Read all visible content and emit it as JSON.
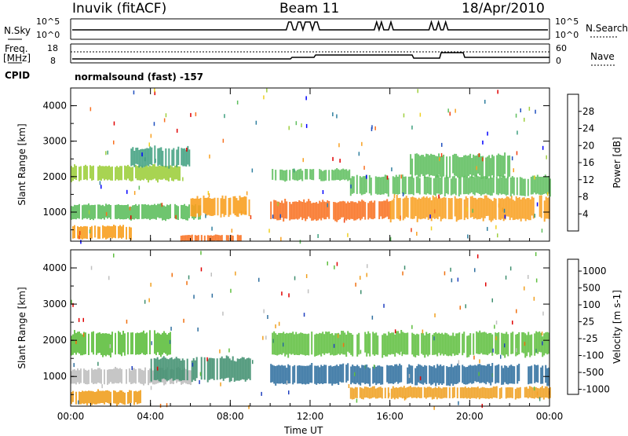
{
  "header": {
    "title": "Inuvik (fitACF)",
    "beam": "Beam 11",
    "date": "18/Apr/2010"
  },
  "strip_labels": {
    "nsky": "N.Sky",
    "nsky_ticks": [
      "10^5",
      "10^0"
    ],
    "nsearch": "N.Search",
    "nsearch_ticks": [
      "10^5",
      "10^0"
    ],
    "freq": "Freq.",
    "freq_unit": "[MHz]",
    "freq_ticks": [
      "18",
      "8"
    ],
    "nave": "Nave",
    "nave_ticks": [
      "60",
      "0"
    ],
    "cpid": "CPID",
    "cpid_value": "normalsound (fast) -157"
  },
  "chart_data": [
    {
      "type": "heatmap",
      "title": "",
      "xlabel": "Time UT",
      "ylabel": "Slant Range [km]",
      "x_ticks": [
        "00:00",
        "04:00",
        "08:00",
        "12:00",
        "16:00",
        "20:00",
        "00:00"
      ],
      "y_ticks": [
        1000,
        2000,
        3000,
        4000
      ],
      "ylim": [
        180,
        4500
      ],
      "colorbar": {
        "label": "Power [dB]",
        "ticks": [
          4,
          8,
          12,
          16,
          20,
          24,
          28
        ],
        "colors": [
          "#0000ff",
          "#1f4fbf",
          "#2f7f9f",
          "#3fa07f",
          "#5fbf5f",
          "#9fcf3f",
          "#f0d020",
          "#f8a020",
          "#f87020",
          "#f04010",
          "#e00000"
        ]
      },
      "bands": [
        {
          "t0": 0.0,
          "t1": 3.0,
          "r0": 250,
          "r1": 600,
          "value": 22
        },
        {
          "t0": 0.0,
          "t1": 6.5,
          "r0": 800,
          "r1": 1200,
          "value": 14
        },
        {
          "t0": 5.5,
          "t1": 8.5,
          "r0": 180,
          "r1": 350,
          "value": 27
        },
        {
          "t0": 6.0,
          "t1": 9.0,
          "r0": 900,
          "r1": 1400,
          "value": 21
        },
        {
          "t0": 10.0,
          "t1": 16.0,
          "r0": 800,
          "r1": 1300,
          "value": 25
        },
        {
          "t0": 16.0,
          "t1": 24.0,
          "r0": 800,
          "r1": 1400,
          "value": 22
        },
        {
          "t0": 0.0,
          "t1": 5.5,
          "r0": 1900,
          "r1": 2300,
          "value": 15
        },
        {
          "t0": 3.0,
          "t1": 6.0,
          "r0": 2300,
          "r1": 2800,
          "value": 11
        },
        {
          "t0": 10.0,
          "t1": 14.0,
          "r0": 1900,
          "r1": 2200,
          "value": 13
        },
        {
          "t0": 14.0,
          "t1": 24.0,
          "r0": 1500,
          "r1": 2000,
          "value": 14
        },
        {
          "t0": 17.0,
          "t1": 22.0,
          "r0": 2000,
          "r1": 2600,
          "value": 12
        }
      ]
    },
    {
      "type": "heatmap",
      "title": "",
      "xlabel": "Time UT",
      "ylabel": "Slant Range [km]",
      "x_ticks": [
        "00:00",
        "04:00",
        "08:00",
        "12:00",
        "16:00",
        "20:00",
        "00:00"
      ],
      "y_ticks": [
        1000,
        2000,
        3000,
        4000
      ],
      "ylim": [
        180,
        4500
      ],
      "colorbar": {
        "label": "Velocity [m s-1]",
        "ticks": [
          "1000",
          "500",
          "100",
          "25",
          "-25",
          "-100",
          "-500",
          "-1000"
        ],
        "colors": [
          "#1f3fbf",
          "#2f6f9f",
          "#3f8f6f",
          "#5fbf3f",
          "#c0c0c0",
          "#f0a020",
          "#f07010",
          "#e00000"
        ]
      },
      "bands": [
        {
          "t0": 0.0,
          "t1": 3.5,
          "r0": 250,
          "r1": 600,
          "value": "-100"
        },
        {
          "t0": 0.0,
          "t1": 6.0,
          "r0": 800,
          "r1": 1200,
          "value": "-25"
        },
        {
          "t0": 4.0,
          "t1": 9.0,
          "r0": 900,
          "r1": 1500,
          "value": "100"
        },
        {
          "t0": 10.0,
          "t1": 24.0,
          "r0": 800,
          "r1": 1300,
          "value": "500"
        },
        {
          "t0": 0.0,
          "t1": 5.0,
          "r0": 1600,
          "r1": 2200,
          "value": "25"
        },
        {
          "t0": 10.0,
          "t1": 24.0,
          "r0": 1600,
          "r1": 2200,
          "value": "25"
        },
        {
          "t0": 14.0,
          "t1": 24.0,
          "r0": 400,
          "r1": 700,
          "value": "-100"
        }
      ]
    }
  ]
}
